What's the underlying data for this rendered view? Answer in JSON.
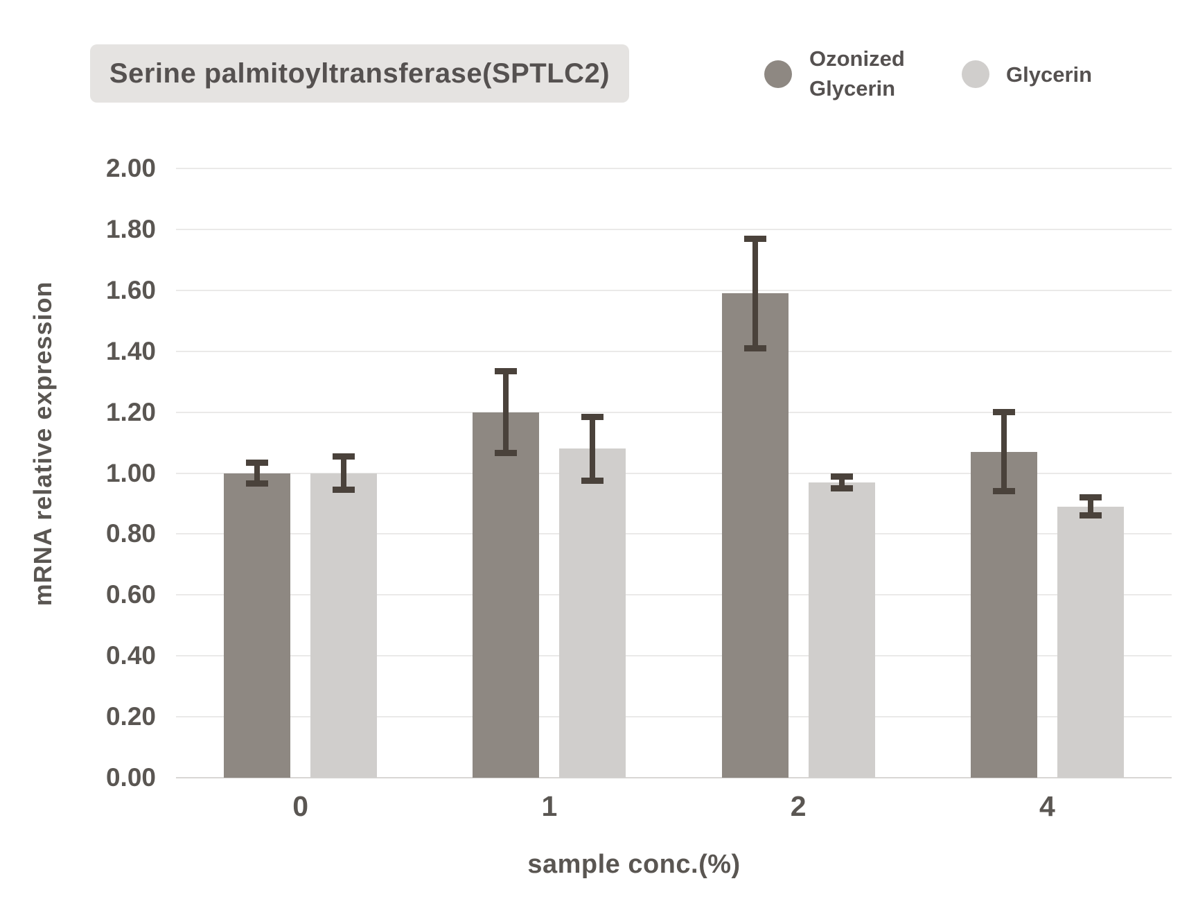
{
  "title": "Serine palmitoyltransferase(SPTLC2)",
  "legend": [
    {
      "label": "Ozonized Glycerin",
      "color": "#8e8882"
    },
    {
      "label": "Glycerin",
      "color": "#d0cecc"
    }
  ],
  "chart_data": {
    "type": "bar",
    "title": "Serine palmitoyltransferase(SPTLC2)",
    "categories": [
      "0",
      "1",
      "2",
      "4"
    ],
    "series": [
      {
        "name": "Ozonized Glycerin",
        "color": "#8e8882",
        "values": [
          1.0,
          1.2,
          1.59,
          1.07
        ],
        "errors": [
          0.045,
          0.145,
          0.19,
          0.14
        ]
      },
      {
        "name": "Glycerin",
        "color": "#d0cecc",
        "values": [
          1.0,
          1.08,
          0.97,
          0.89
        ],
        "errors": [
          0.065,
          0.115,
          0.03,
          0.04
        ]
      }
    ],
    "xlabel": "sample conc.(%)",
    "ylabel": "mRNA relative expression",
    "ylim": [
      0,
      2
    ],
    "ytick_step": 0.2,
    "ytick_format": "0.00",
    "grid": true,
    "legend_position": "top-right",
    "error_color": "#4a423b",
    "error_bars": true
  }
}
